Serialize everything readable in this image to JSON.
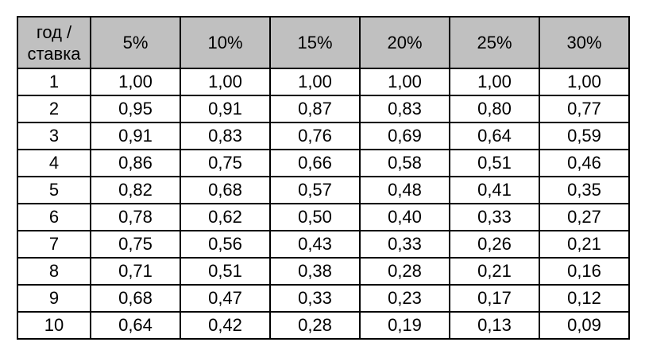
{
  "table": {
    "corner_line1": "год /",
    "corner_line2": "ставка",
    "rates": [
      "5%",
      "10%",
      "15%",
      "20%",
      "25%",
      "30%"
    ],
    "rows": [
      {
        "year": "1",
        "values": [
          "1,00",
          "1,00",
          "1,00",
          "1,00",
          "1,00",
          "1,00"
        ]
      },
      {
        "year": "2",
        "values": [
          "0,95",
          "0,91",
          "0,87",
          "0,83",
          "0,80",
          "0,77"
        ]
      },
      {
        "year": "3",
        "values": [
          "0,91",
          "0,83",
          "0,76",
          "0,69",
          "0,64",
          "0,59"
        ]
      },
      {
        "year": "4",
        "values": [
          "0,86",
          "0,75",
          "0,66",
          "0,58",
          "0,51",
          "0,46"
        ]
      },
      {
        "year": "5",
        "values": [
          "0,82",
          "0,68",
          "0,57",
          "0,48",
          "0,41",
          "0,35"
        ]
      },
      {
        "year": "6",
        "values": [
          "0,78",
          "0,62",
          "0,50",
          "0,40",
          "0,33",
          "0,27"
        ]
      },
      {
        "year": "7",
        "values": [
          "0,75",
          "0,56",
          "0,43",
          "0,33",
          "0,26",
          "0,21"
        ]
      },
      {
        "year": "8",
        "values": [
          "0,71",
          "0,51",
          "0,38",
          "0,28",
          "0,21",
          "0,16"
        ]
      },
      {
        "year": "9",
        "values": [
          "0,68",
          "0,47",
          "0,33",
          "0,23",
          "0,17",
          "0,12"
        ]
      },
      {
        "year": "10",
        "values": [
          "0,64",
          "0,42",
          "0,28",
          "0,19",
          "0,13",
          "0,09"
        ]
      }
    ],
    "colors": {
      "header_background": "#c0c0c0",
      "border": "#000000",
      "cell_background": "#ffffff",
      "text": "#000000"
    }
  }
}
